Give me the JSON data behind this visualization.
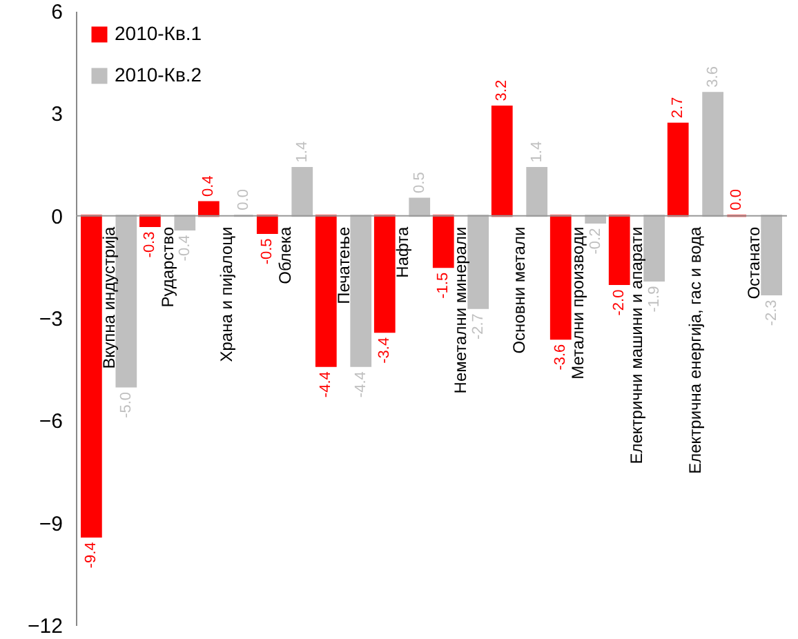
{
  "chart_data": {
    "type": "bar",
    "categories": [
      "Вкупна индустрија",
      "Рударство",
      "Храна и пијалоци",
      "Облека",
      "Печатење",
      "Нафта",
      "Неметални минерали",
      "Основни метали",
      "Метални производи",
      "Електрични машини и апарати",
      "Електрична енергија, гас и вода",
      "Останато"
    ],
    "series": [
      {
        "name": "2010-Кв.1",
        "color": "#ff0000",
        "values": [
          -9.4,
          -0.3,
          0.4,
          -0.5,
          -4.4,
          -3.4,
          -1.5,
          3.2,
          -3.6,
          -2.0,
          2.7,
          0.0
        ],
        "value_labels": [
          "-9.4",
          "-0.3",
          "0.4",
          "-0.5",
          "-4.4",
          "-3.4",
          "-1.5",
          "3.2",
          "-3.6",
          "-2.0",
          "2.7",
          "0.0"
        ]
      },
      {
        "name": "2010-Кв.2",
        "color": "#bfbfbf",
        "values": [
          -5.0,
          -0.4,
          0.0,
          1.4,
          -4.4,
          0.5,
          -2.7,
          1.4,
          -0.2,
          -1.9,
          3.6,
          -2.3
        ],
        "value_labels": [
          "-5.0",
          "-0.4",
          "0.0",
          "1.4",
          "-4.4",
          "0.5",
          "-2.7",
          "1.4",
          "-0.2",
          "-1.9",
          "3.6",
          "-2.3"
        ]
      }
    ],
    "ylim": [
      -12,
      6
    ],
    "yticks": [
      -12,
      -9,
      -6,
      -3,
      0,
      3,
      6
    ],
    "grid": false,
    "legend": "top left"
  }
}
